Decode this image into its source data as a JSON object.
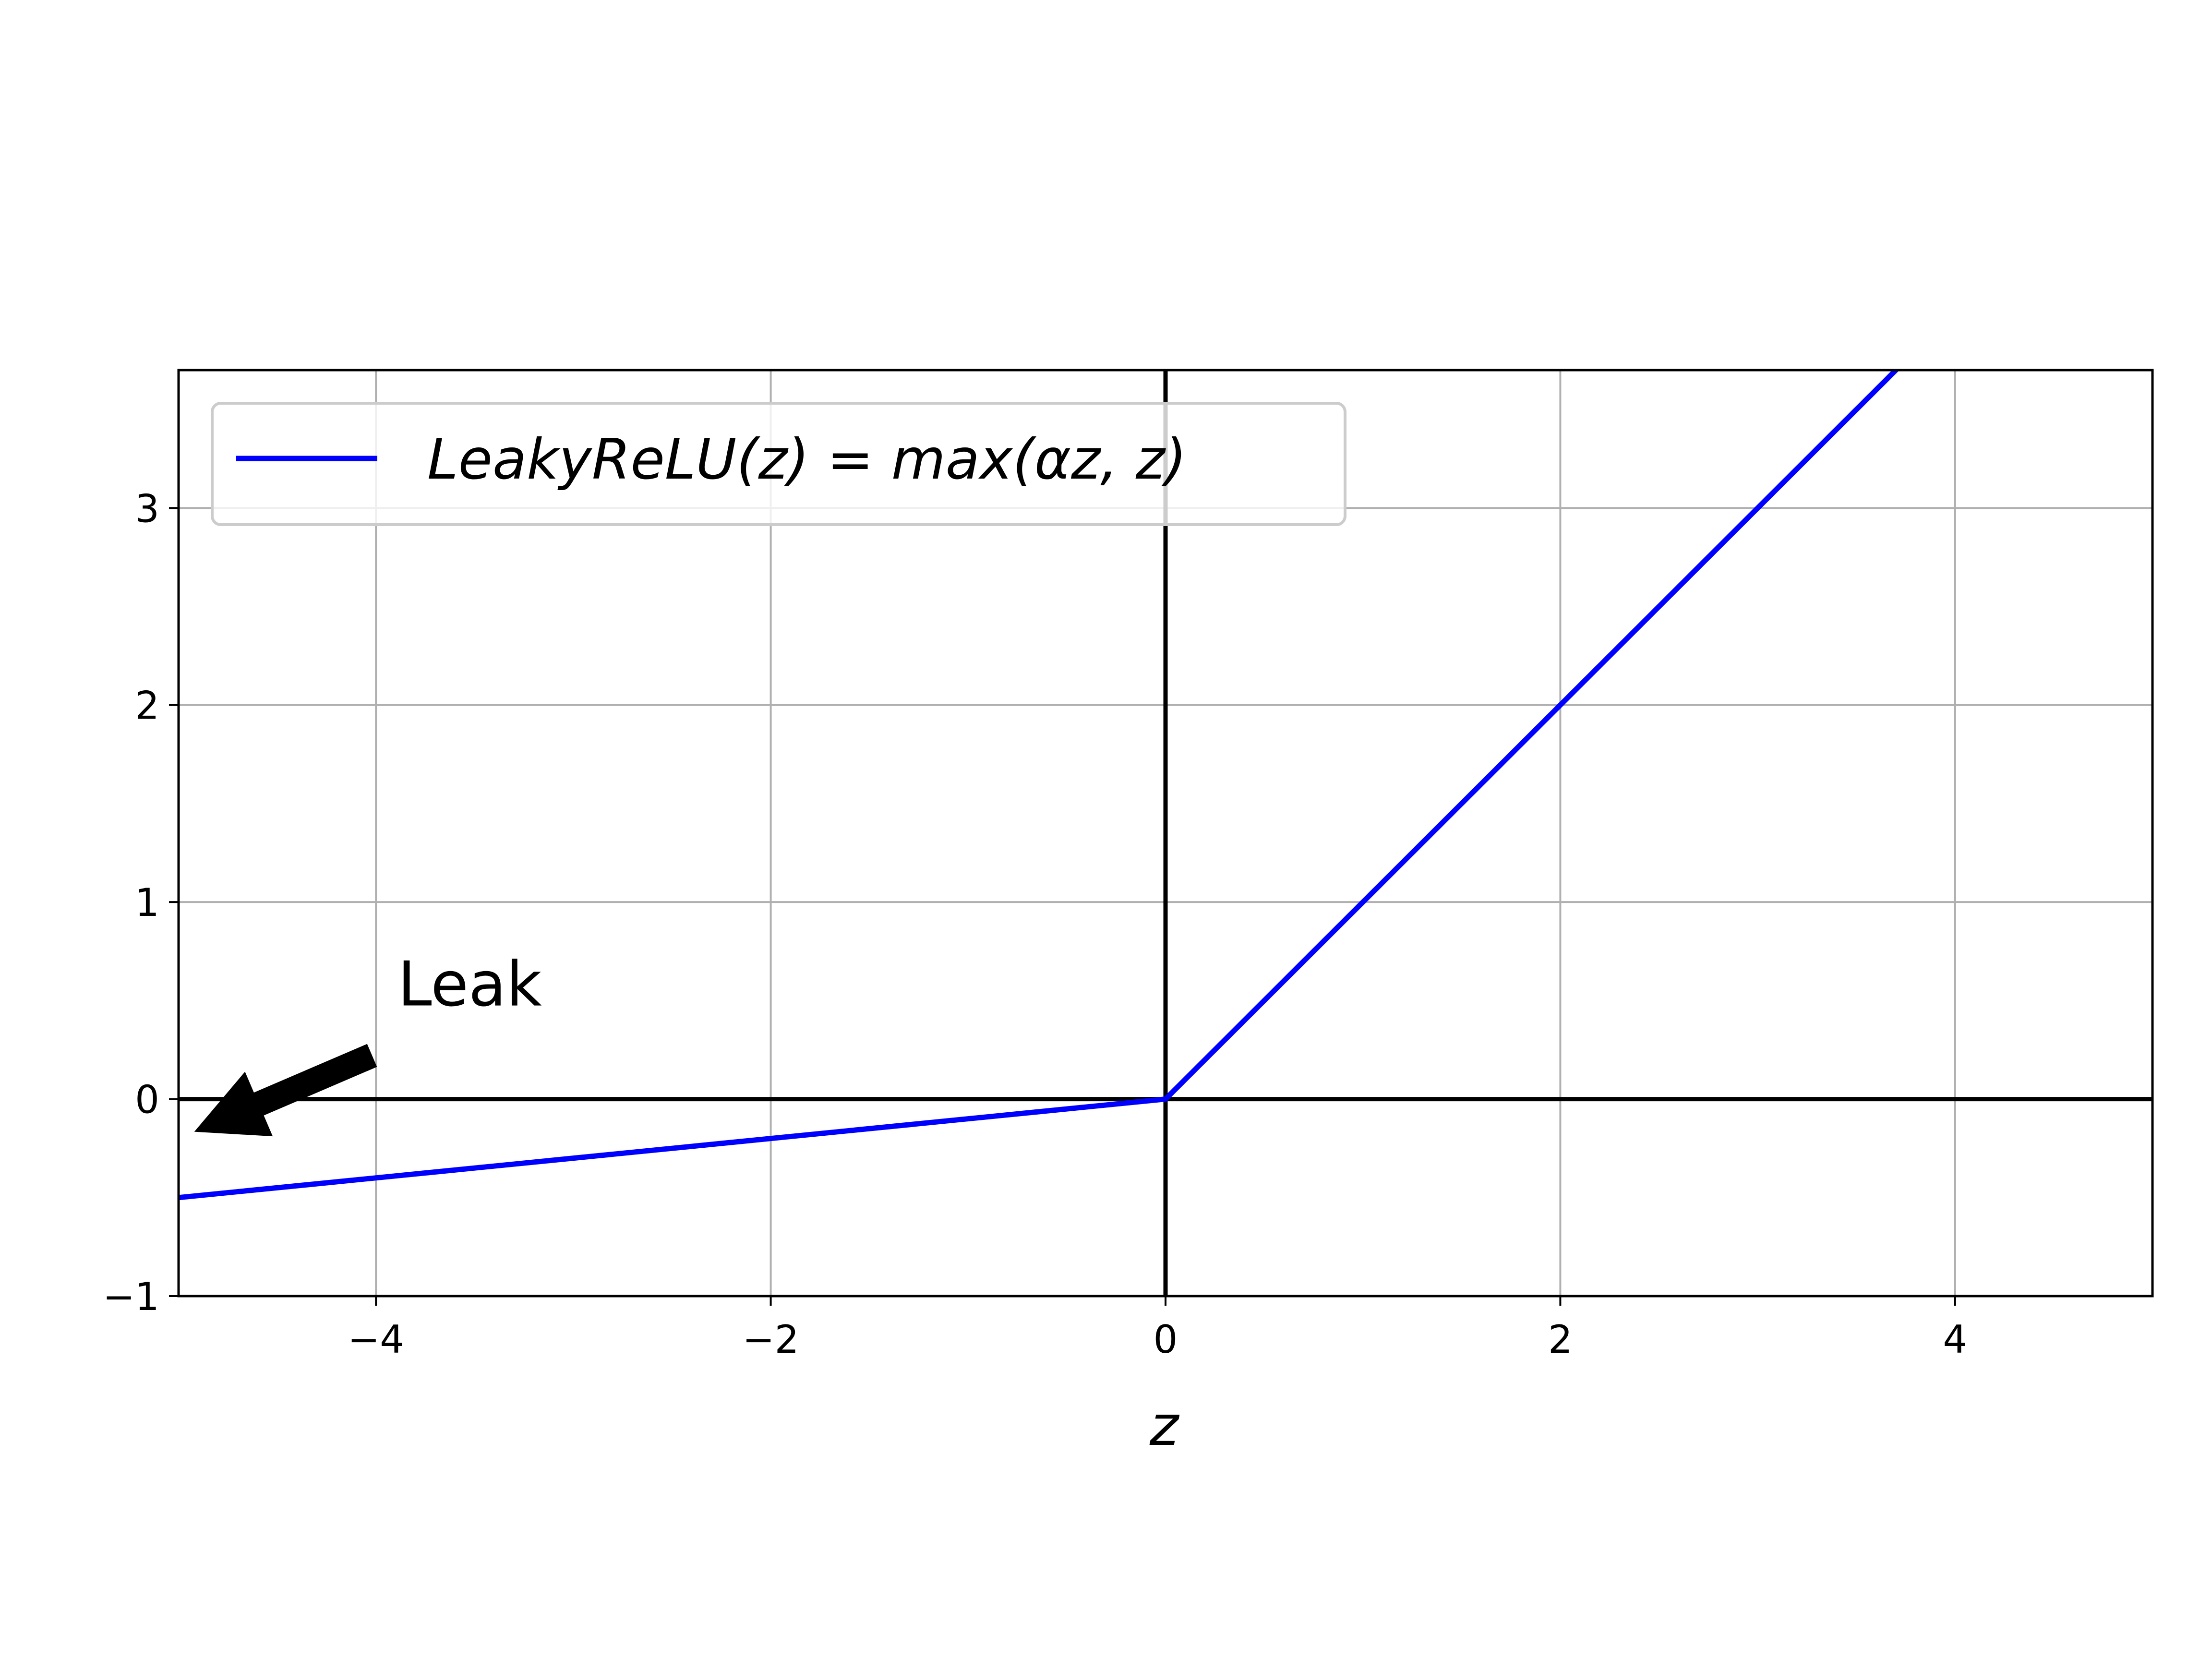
{
  "chart_data": {
    "type": "line",
    "title": "",
    "xlabel": "z",
    "ylabel": "",
    "xlim": [
      -5,
      5
    ],
    "ylim": [
      -1,
      3.7
    ],
    "grid": true,
    "xticks": [
      -4,
      -2,
      0,
      2,
      4
    ],
    "xtick_labels": [
      "−4",
      "−2",
      "0",
      "2",
      "4"
    ],
    "yticks": [
      -1,
      0,
      1,
      2,
      3
    ],
    "ytick_labels": [
      "−1",
      "0",
      "1",
      "2",
      "3"
    ],
    "series": [
      {
        "name": "LeakyReLU(z) = max(αz, z)",
        "color": "#0000ff",
        "x": [
          -5,
          0,
          5
        ],
        "y": [
          -0.5,
          0,
          5
        ]
      }
    ],
    "reference_lines": [
      {
        "orientation": "horizontal",
        "value": 0,
        "color": "#000000"
      },
      {
        "orientation": "vertical",
        "value": 0,
        "color": "#000000"
      }
    ],
    "legend": {
      "location": "upper-left",
      "entries": [
        "LeakyReLU(z) = max(αz, z)"
      ]
    },
    "annotations": [
      {
        "text": "Leak",
        "xy": [
          -5,
          -0.2
        ],
        "xytext": [
          -4.0,
          0.5
        ],
        "arrow": true,
        "arrow_color": "#000000"
      }
    ]
  }
}
